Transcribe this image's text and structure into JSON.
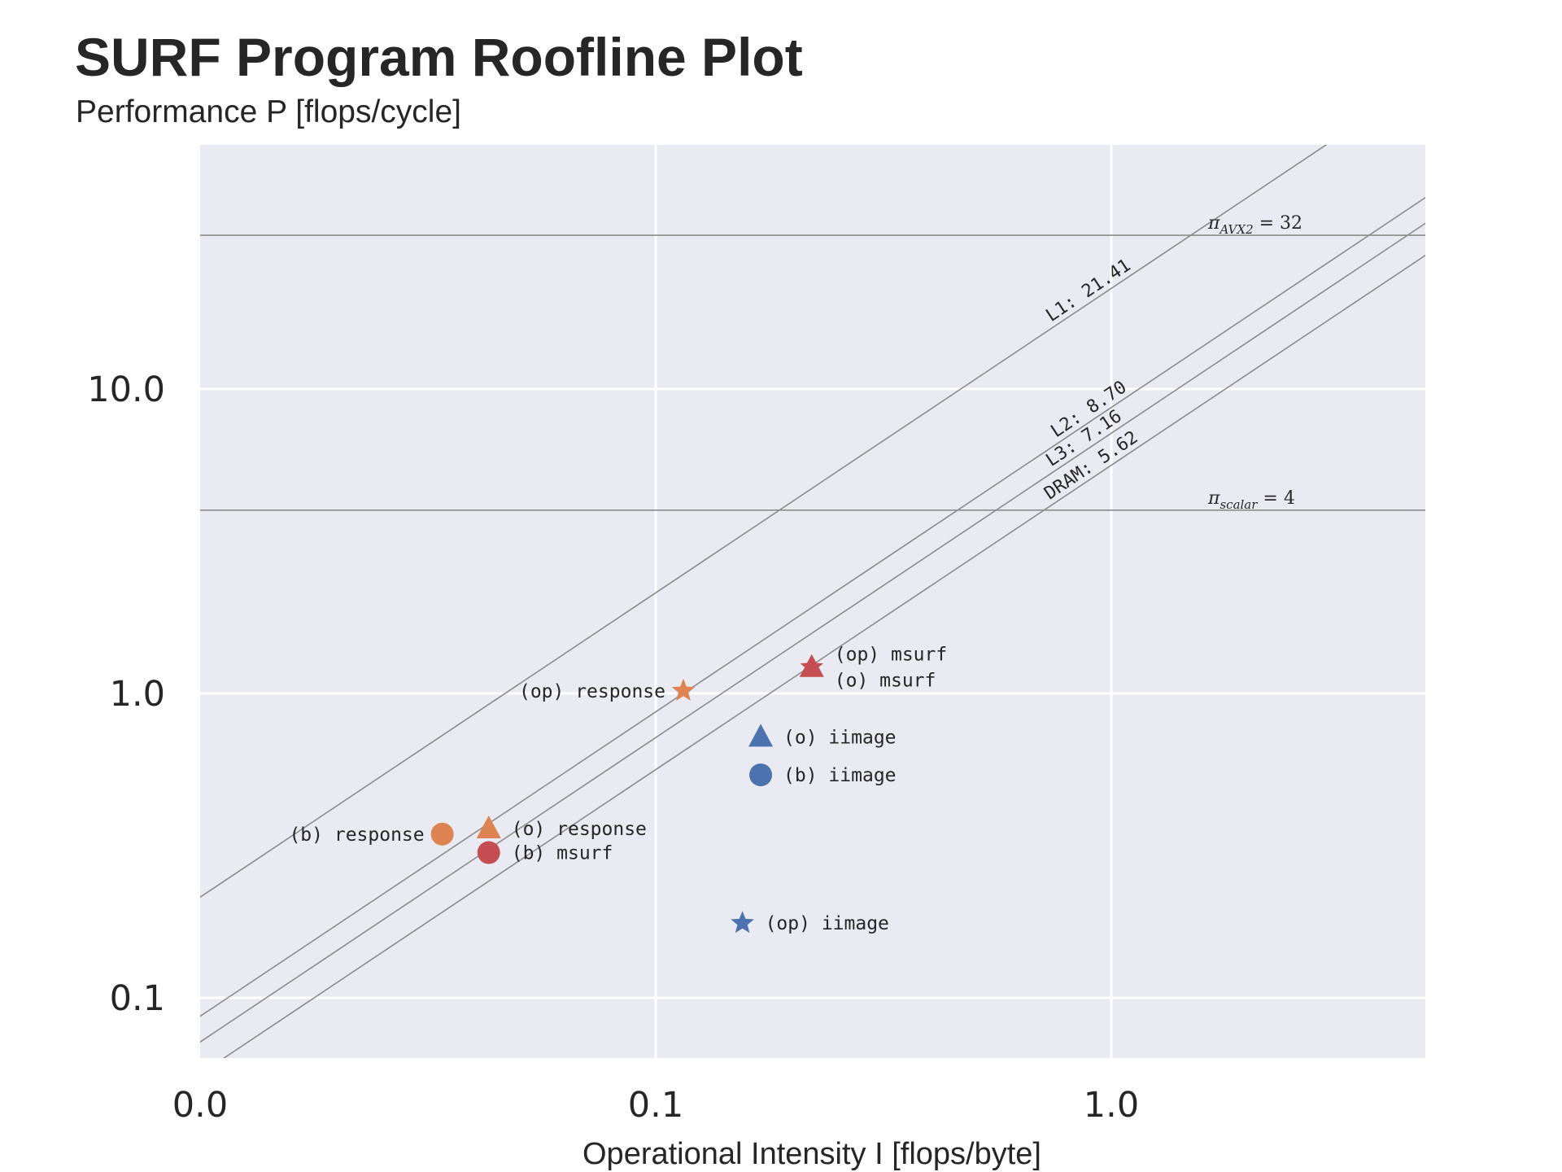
{
  "chart_data": {
    "type": "scatter",
    "title": "SURF Program Roofline Plot",
    "subtitle": "Performance P [flops/cycle]",
    "xlabel": "Operational Intensity I [flops/byte]",
    "xscale": "log",
    "yscale": "log",
    "xlim": [
      0.01,
      4.0
    ],
    "ylim": [
      0.065,
      50
    ],
    "x_ticks": [
      {
        "value": 0.01,
        "label": "0.0"
      },
      {
        "value": 0.1,
        "label": "0.1"
      },
      {
        "value": 1.0,
        "label": "1.0"
      }
    ],
    "y_ticks": [
      {
        "value": 0.1,
        "label": "0.1"
      },
      {
        "value": 1.0,
        "label": "1.0"
      },
      {
        "value": 10.0,
        "label": "10.0"
      }
    ],
    "grid": true,
    "peaks": [
      {
        "name": "AVX2",
        "value": 32,
        "label_base": "π",
        "label_sub": "AVX2",
        "label_tail": " = 32"
      },
      {
        "name": "scalar",
        "value": 4,
        "label_base": "π",
        "label_sub": "scalar",
        "label_tail": " = 4"
      }
    ],
    "bandwidth_roofs": [
      {
        "label": "L1: 21.41",
        "beta": 21.41
      },
      {
        "label": "L2: 8.70",
        "beta": 8.7
      },
      {
        "label": "L3: 7.16",
        "beta": 7.16
      },
      {
        "label": "DRAM: 5.62",
        "beta": 5.62
      }
    ],
    "points": [
      {
        "label": "(op) msurf",
        "x": 0.22,
        "y": 1.22,
        "marker": "star",
        "color": "#c44e52",
        "label_side": "right-up"
      },
      {
        "label": "(o) msurf",
        "x": 0.22,
        "y": 1.22,
        "marker": "triangle",
        "color": "#c44e52",
        "label_side": "right-down"
      },
      {
        "label": "(op) response",
        "x": 0.115,
        "y": 1.02,
        "marker": "star",
        "color": "#dd8452",
        "label_side": "left"
      },
      {
        "label": "(o) iimage",
        "x": 0.17,
        "y": 0.72,
        "marker": "triangle",
        "color": "#4c72b0",
        "label_side": "right"
      },
      {
        "label": "(b) iimage",
        "x": 0.17,
        "y": 0.54,
        "marker": "circle",
        "color": "#4c72b0",
        "label_side": "right"
      },
      {
        "label": "(b) response",
        "x": 0.034,
        "y": 0.345,
        "marker": "circle",
        "color": "#dd8452",
        "label_side": "left"
      },
      {
        "label": "(o) response",
        "x": 0.043,
        "y": 0.36,
        "marker": "triangle",
        "color": "#dd8452",
        "label_side": "right"
      },
      {
        "label": "(b) msurf",
        "x": 0.043,
        "y": 0.3,
        "marker": "circle",
        "color": "#c44e52",
        "label_side": "right"
      },
      {
        "label": "(op) iimage",
        "x": 0.155,
        "y": 0.176,
        "marker": "star",
        "color": "#4c72b0",
        "label_side": "right"
      }
    ],
    "colors": {
      "plot_background": "#eaeaf2",
      "grid": "#ffffff",
      "roof_line": "#8c8c8c",
      "text": "#262626"
    }
  }
}
